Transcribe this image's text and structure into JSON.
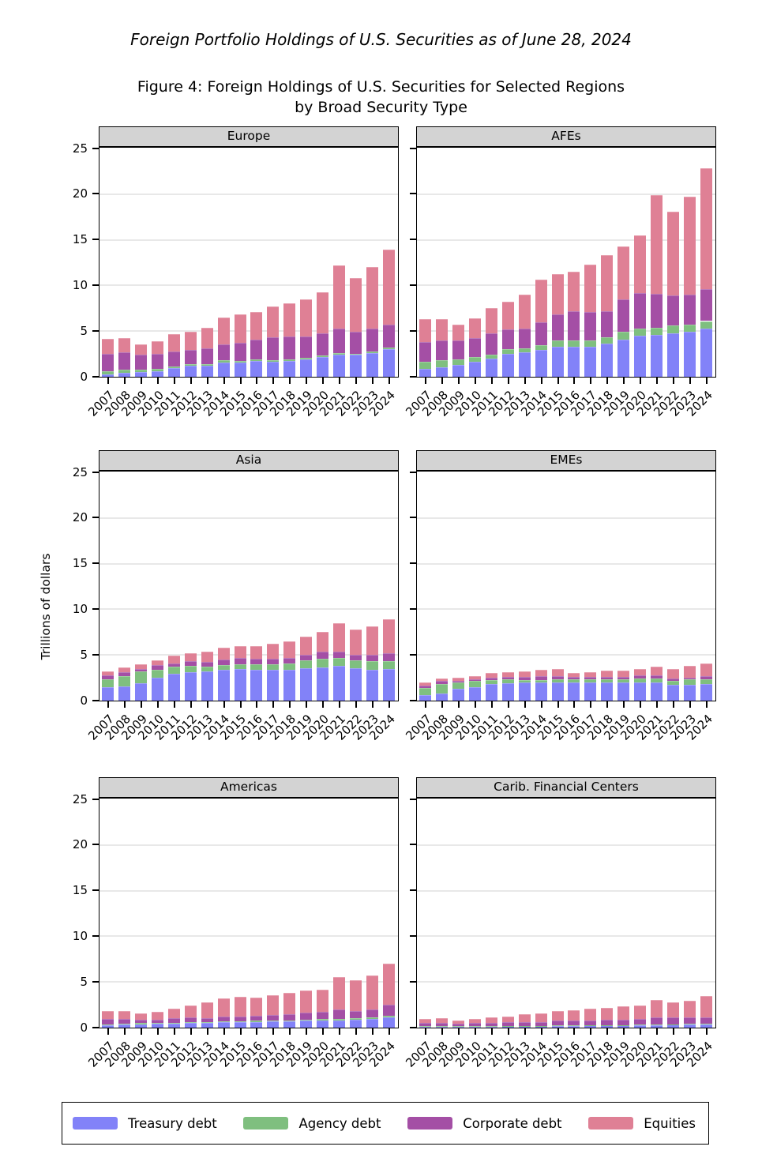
{
  "page_title_italic": "Foreign Portfolio Holdings of U.S. Securities as of June 28, 2024",
  "figure_title_line1": "Figure 4: Foreign Holdings of U.S. Securities for Selected Regions",
  "figure_title_line2": "by Broad Security Type",
  "y_axis": {
    "label": "Trillions of dollars",
    "ticks": [
      0,
      5,
      10,
      15,
      20,
      25
    ],
    "max": 25
  },
  "years": [
    "2007",
    "2008",
    "2009",
    "2010",
    "2011",
    "2012",
    "2013",
    "2014",
    "2015",
    "2016",
    "2017",
    "2018",
    "2019",
    "2020",
    "2021",
    "2022",
    "2023",
    "2024"
  ],
  "legend": {
    "items": [
      {
        "key": "treasury",
        "label": "Treasury debt",
        "color": "#8282f8"
      },
      {
        "key": "agency",
        "label": "Agency debt",
        "color": "#7fbf7f"
      },
      {
        "key": "corporate",
        "label": "Corporate debt",
        "color": "#a44fa5"
      },
      {
        "key": "equities",
        "label": "Equities",
        "color": "#df8095"
      }
    ]
  },
  "colors": {
    "panel_header_bg": "#d3d3d3",
    "gridline": "#e8e8e8",
    "border": "#000000",
    "background": "#ffffff"
  },
  "chart_data": [
    {
      "type": "stacked-bar",
      "title": "Europe",
      "xlabel": "",
      "ylabel": "Trillions of dollars",
      "ylim": [
        0,
        25
      ],
      "grid": true,
      "series": {
        "treasury": [
          0.3,
          0.4,
          0.55,
          0.6,
          0.95,
          1.2,
          1.2,
          1.6,
          1.55,
          1.7,
          1.65,
          1.75,
          1.9,
          2.2,
          2.4,
          2.4,
          2.6,
          3.0
        ],
        "agency": [
          0.35,
          0.4,
          0.25,
          0.25,
          0.15,
          0.2,
          0.2,
          0.2,
          0.2,
          0.2,
          0.15,
          0.15,
          0.15,
          0.15,
          0.2,
          0.15,
          0.2,
          0.2
        ],
        "corporate": [
          1.9,
          1.85,
          1.6,
          1.65,
          1.65,
          1.55,
          1.7,
          1.75,
          2.0,
          2.2,
          2.5,
          2.55,
          2.35,
          2.4,
          2.65,
          2.4,
          2.5,
          2.55
        ],
        "equities": [
          1.6,
          1.55,
          1.15,
          1.4,
          1.95,
          1.95,
          2.3,
          2.9,
          3.1,
          3.0,
          3.4,
          3.6,
          4.05,
          4.5,
          6.95,
          5.9,
          6.7,
          8.2
        ]
      }
    },
    {
      "type": "stacked-bar",
      "title": "AFEs",
      "xlabel": "",
      "ylabel": "Trillions of dollars",
      "ylim": [
        0,
        25
      ],
      "grid": true,
      "series": {
        "treasury": [
          0.9,
          1.05,
          1.3,
          1.65,
          1.95,
          2.55,
          2.65,
          2.95,
          3.3,
          3.3,
          3.3,
          3.6,
          4.1,
          4.5,
          4.55,
          4.75,
          4.9,
          5.25
        ],
        "agency": [
          0.75,
          0.75,
          0.6,
          0.55,
          0.5,
          0.5,
          0.5,
          0.5,
          0.65,
          0.7,
          0.7,
          0.7,
          0.8,
          0.8,
          0.85,
          0.85,
          0.8,
          0.85
        ],
        "corporate": [
          2.2,
          2.2,
          2.1,
          2.05,
          2.3,
          2.1,
          2.15,
          2.5,
          2.85,
          3.15,
          3.1,
          2.85,
          3.6,
          3.9,
          3.7,
          3.35,
          3.3,
          3.5
        ],
        "equities": [
          2.5,
          2.35,
          1.7,
          2.15,
          2.8,
          3.1,
          3.7,
          4.7,
          4.45,
          4.35,
          5.2,
          6.15,
          5.8,
          6.3,
          10.8,
          9.15,
          10.7,
          13.2
        ]
      }
    },
    {
      "type": "stacked-bar",
      "title": "Asia",
      "xlabel": "",
      "ylabel": "Trillions of dollars",
      "ylim": [
        0,
        25
      ],
      "grid": true,
      "series": {
        "treasury": [
          1.45,
          1.6,
          1.9,
          2.5,
          2.9,
          3.15,
          3.2,
          3.4,
          3.45,
          3.4,
          3.4,
          3.4,
          3.55,
          3.65,
          3.8,
          3.55,
          3.4,
          3.5
        ],
        "agency": [
          0.9,
          1.05,
          1.3,
          0.9,
          0.8,
          0.7,
          0.55,
          0.5,
          0.5,
          0.55,
          0.6,
          0.65,
          0.9,
          0.95,
          0.9,
          0.85,
          0.9,
          0.85
        ],
        "corporate": [
          0.45,
          0.45,
          0.3,
          0.5,
          0.4,
          0.5,
          0.5,
          0.6,
          0.7,
          0.6,
          0.55,
          0.65,
          0.55,
          0.75,
          0.7,
          0.6,
          0.7,
          0.8
        ],
        "equities": [
          0.4,
          0.5,
          0.45,
          0.55,
          0.8,
          0.85,
          1.1,
          1.3,
          1.35,
          1.4,
          1.65,
          1.75,
          2.0,
          2.2,
          3.05,
          2.75,
          3.1,
          3.8
        ]
      }
    },
    {
      "type": "stacked-bar",
      "title": "EMEs",
      "xlabel": "",
      "ylabel": "Trillions of dollars",
      "ylim": [
        0,
        25
      ],
      "grid": true,
      "series": {
        "treasury": [
          0.6,
          0.75,
          1.3,
          1.5,
          1.85,
          1.9,
          1.95,
          1.95,
          2.0,
          1.95,
          2.0,
          2.0,
          2.0,
          2.0,
          1.95,
          1.7,
          1.75,
          1.85
        ],
        "agency": [
          0.8,
          1.1,
          0.65,
          0.65,
          0.4,
          0.4,
          0.3,
          0.3,
          0.3,
          0.35,
          0.3,
          0.3,
          0.3,
          0.4,
          0.5,
          0.5,
          0.55,
          0.5
        ],
        "corporate": [
          0.25,
          0.3,
          0.25,
          0.2,
          0.22,
          0.3,
          0.35,
          0.4,
          0.4,
          0.3,
          0.3,
          0.3,
          0.3,
          0.35,
          0.3,
          0.25,
          0.23,
          0.3
        ],
        "equities": [
          0.3,
          0.25,
          0.3,
          0.35,
          0.55,
          0.55,
          0.6,
          0.7,
          0.8,
          0.45,
          0.55,
          0.65,
          0.7,
          0.7,
          0.95,
          1.0,
          1.25,
          1.4
        ]
      }
    },
    {
      "type": "stacked-bar",
      "title": "Americas",
      "xlabel": "",
      "ylabel": "Trillions of dollars",
      "ylim": [
        0,
        25
      ],
      "grid": true,
      "series": {
        "treasury": [
          0.26,
          0.32,
          0.38,
          0.4,
          0.46,
          0.5,
          0.55,
          0.58,
          0.6,
          0.64,
          0.66,
          0.7,
          0.75,
          0.78,
          0.8,
          0.84,
          0.92,
          1.15
        ],
        "agency": [
          0.12,
          0.12,
          0.1,
          0.1,
          0.1,
          0.1,
          0.08,
          0.1,
          0.1,
          0.1,
          0.1,
          0.1,
          0.1,
          0.13,
          0.17,
          0.17,
          0.17,
          0.17
        ],
        "corporate": [
          0.55,
          0.55,
          0.4,
          0.4,
          0.45,
          0.5,
          0.45,
          0.5,
          0.55,
          0.55,
          0.6,
          0.7,
          0.8,
          0.85,
          1.0,
          0.85,
          0.88,
          1.15
        ],
        "equities": [
          0.85,
          0.85,
          0.65,
          0.8,
          1.05,
          1.35,
          1.7,
          2.05,
          2.15,
          2.0,
          2.2,
          2.3,
          2.4,
          2.4,
          3.6,
          3.3,
          3.75,
          4.5
        ]
      }
    },
    {
      "type": "stacked-bar",
      "title": "Carib. Financial Centers",
      "xlabel": "",
      "ylabel": "Trillions of dollars",
      "ylim": [
        0,
        25
      ],
      "grid": true,
      "series": {
        "treasury": [
          0.1,
          0.1,
          0.1,
          0.12,
          0.13,
          0.15,
          0.15,
          0.17,
          0.2,
          0.2,
          0.22,
          0.25,
          0.25,
          0.25,
          0.3,
          0.32,
          0.33,
          0.35
        ],
        "agency": [
          0.05,
          0.05,
          0.04,
          0.04,
          0.04,
          0.04,
          0.04,
          0.04,
          0.05,
          0.05,
          0.05,
          0.05,
          0.05,
          0.06,
          0.06,
          0.07,
          0.07,
          0.08
        ],
        "corporate": [
          0.35,
          0.4,
          0.31,
          0.34,
          0.38,
          0.41,
          0.41,
          0.44,
          0.5,
          0.5,
          0.53,
          0.55,
          0.6,
          0.64,
          0.74,
          0.71,
          0.7,
          0.72
        ],
        "equities": [
          0.45,
          0.5,
          0.3,
          0.45,
          0.55,
          0.65,
          0.85,
          0.95,
          1.05,
          1.15,
          1.25,
          1.35,
          1.4,
          1.45,
          1.9,
          1.7,
          1.85,
          2.35
        ]
      }
    }
  ]
}
